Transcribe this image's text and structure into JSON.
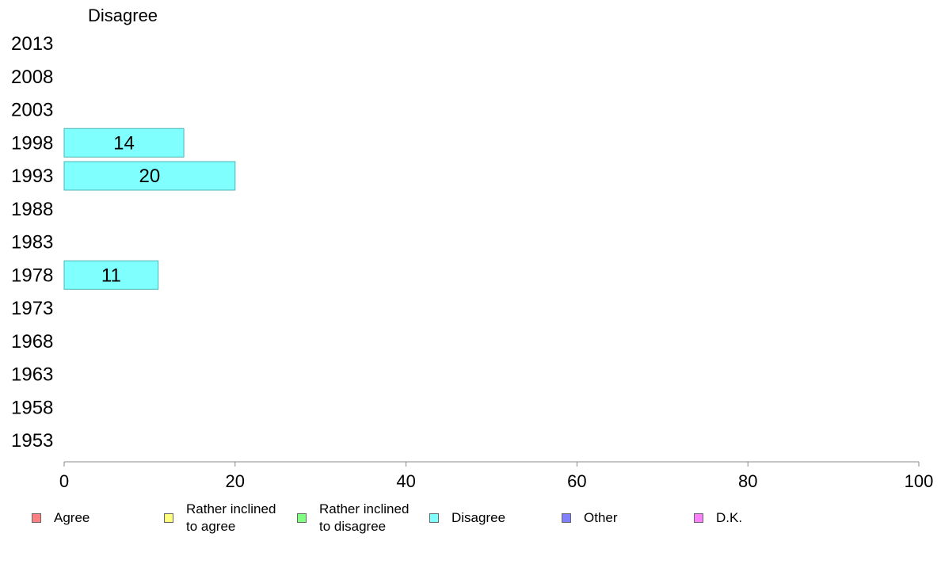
{
  "chart_data": {
    "type": "bar",
    "orientation": "horizontal",
    "title": "Disagree",
    "categories": [
      "2013",
      "2008",
      "2003",
      "1998",
      "1993",
      "1988",
      "1983",
      "1978",
      "1973",
      "1968",
      "1963",
      "1958",
      "1953"
    ],
    "series": [
      {
        "name": "Disagree",
        "color": "#80ffff",
        "values": [
          null,
          null,
          null,
          14,
          20,
          null,
          null,
          11,
          null,
          null,
          null,
          null,
          null
        ]
      }
    ],
    "x_ticks": [
      "0",
      "20",
      "40",
      "60",
      "80",
      "100"
    ],
    "xlim": [
      0,
      100
    ],
    "grid": false,
    "legend_position": "bottom"
  },
  "legend": [
    {
      "label": "Agree",
      "color": "#ff8080"
    },
    {
      "label": "Rather inclined to agree",
      "color": "#ffff80"
    },
    {
      "label": "Rather inclined to disagree",
      "color": "#80ff80"
    },
    {
      "label": "Disagree",
      "color": "#80ffff"
    },
    {
      "label": "Other",
      "color": "#8080ff"
    },
    {
      "label": "D.K.",
      "color": "#ff80ff"
    }
  ]
}
